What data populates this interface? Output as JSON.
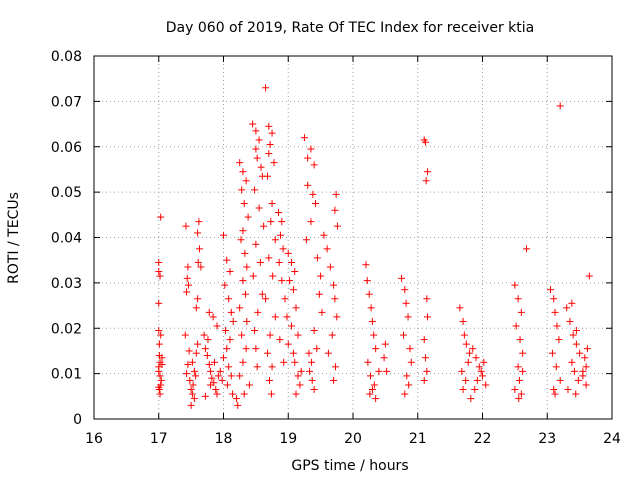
{
  "chart_data": {
    "type": "scatter",
    "title": "Day 060 of 2019, Rate Of TEC Index for receiver ktia",
    "xlabel": "GPS time / hours",
    "ylabel": "ROTI / TECUs",
    "xlim": [
      16,
      24
    ],
    "ylim": [
      0,
      0.08
    ],
    "grid": true,
    "marker": "+",
    "color": "#ff0000",
    "x_ticks": [
      "16",
      "17",
      "18",
      "19",
      "20",
      "21",
      "22",
      "23",
      "24"
    ],
    "y_ticks": [
      "0",
      "0.01",
      "0.02",
      "0.03",
      "0.04",
      "0.05",
      "0.06",
      "0.07",
      "0.08"
    ],
    "series": [
      {
        "name": "ROTI",
        "x": [
          17.0,
          17.0,
          17.02,
          17.0,
          17.03,
          17.01,
          17.05,
          17.0,
          17.02,
          17.04,
          17.0,
          17.01,
          17.02,
          17.03,
          17.0,
          17.02,
          17.05,
          17.01,
          17.03,
          17.0,
          17.42,
          17.45,
          17.44,
          17.46,
          17.43,
          17.41,
          17.47,
          17.45,
          17.43,
          17.48,
          17.5,
          17.52,
          17.55,
          17.5,
          17.53,
          17.57,
          17.55,
          17.52,
          17.58,
          17.6,
          17.62,
          17.6,
          17.63,
          17.61,
          17.65,
          17.6,
          17.58,
          17.7,
          17.72,
          17.75,
          17.78,
          17.8,
          17.82,
          17.85,
          17.88,
          17.9,
          17.72,
          17.78,
          17.84,
          17.9,
          17.76,
          17.86,
          17.95,
          17.92,
          17.98,
          17.8,
          18.0,
          18.05,
          18.1,
          18.02,
          18.08,
          18.12,
          18.15,
          18.03,
          18.1,
          18.05,
          18.0,
          18.08,
          18.12,
          18.06,
          18.14,
          18.2,
          18.22,
          18.25,
          18.3,
          18.35,
          18.28,
          18.32,
          18.38,
          18.3,
          18.27,
          18.33,
          18.36,
          18.3,
          18.34,
          18.25,
          18.36,
          18.28,
          18.35,
          18.3,
          18.25,
          18.4,
          18.32,
          18.45,
          18.5,
          18.55,
          18.5,
          18.52,
          18.58,
          18.6,
          18.48,
          18.55,
          18.62,
          18.5,
          18.57,
          18.46,
          18.6,
          18.53,
          18.48,
          18.5,
          18.52,
          18.65,
          18.7,
          18.75,
          18.72,
          18.7,
          18.78,
          18.68,
          18.75,
          18.73,
          18.8,
          18.7,
          18.76,
          18.65,
          18.8,
          18.72,
          18.68,
          18.75,
          18.71,
          18.74,
          18.85,
          18.9,
          18.88,
          18.92,
          18.86,
          18.9,
          18.95,
          18.98,
          18.87,
          18.93,
          19.0,
          19.05,
          19.1,
          19.02,
          19.08,
          19.12,
          19.05,
          19.0,
          19.1,
          19.15,
          19.18,
          19.12,
          19.2,
          19.08,
          19.15,
          19.25,
          19.3,
          19.35,
          19.4,
          19.3,
          19.38,
          19.42,
          19.35,
          19.28,
          19.45,
          19.5,
          19.48,
          19.52,
          19.4,
          19.44,
          19.36,
          19.33,
          19.37,
          19.4,
          19.32,
          19.55,
          19.6,
          19.65,
          19.7,
          19.72,
          19.75,
          19.68,
          19.62,
          19.73,
          19.7,
          19.74,
          19.72,
          19.76,
          20.2,
          20.22,
          20.25,
          20.28,
          20.3,
          20.32,
          20.35,
          20.23,
          20.27,
          20.33,
          20.3,
          20.26,
          20.35,
          20.4,
          20.5,
          20.48,
          20.52,
          20.75,
          20.8,
          20.82,
          20.85,
          20.78,
          20.88,
          20.9,
          20.83,
          20.86,
          20.8,
          21.1,
          21.12,
          21.15,
          21.13,
          21.14,
          21.15,
          21.1,
          21.12,
          21.14,
          21.1,
          21.65,
          21.7,
          21.72,
          21.75,
          21.8,
          21.78,
          21.68,
          21.74,
          21.7,
          21.82,
          21.85,
          21.9,
          21.95,
          22.0,
          22.05,
          21.92,
          21.98,
          22.02,
          21.88,
          22.5,
          22.55,
          22.6,
          22.52,
          22.58,
          22.62,
          22.55,
          22.57,
          22.5,
          22.6,
          22.56,
          22.62,
          22.68,
          23.05,
          23.1,
          23.12,
          23.15,
          23.18,
          23.08,
          23.14,
          23.2,
          23.1,
          23.12,
          23.3,
          23.35,
          23.4,
          23.45,
          23.5,
          23.38,
          23.42,
          23.48,
          23.32,
          23.44,
          23.55,
          23.6,
          23.58,
          23.62,
          23.65,
          23.6,
          23.45,
          23.2,
          23.38,
          23.55
        ],
        "y": [
          0.0345,
          0.0325,
          0.0315,
          0.0195,
          0.0185,
          0.014,
          0.012,
          0.0105,
          0.0095,
          0.0085,
          0.007,
          0.0065,
          0.0055,
          0.0075,
          0.0115,
          0.0125,
          0.0135,
          0.0165,
          0.0445,
          0.0255,
          0.0425,
          0.0335,
          0.031,
          0.0295,
          0.028,
          0.0185,
          0.015,
          0.012,
          0.01,
          0.0085,
          0.0065,
          0.0055,
          0.0045,
          0.003,
          0.0075,
          0.0095,
          0.0105,
          0.0125,
          0.0145,
          0.0165,
          0.0435,
          0.041,
          0.0375,
          0.0345,
          0.0335,
          0.0265,
          0.0245,
          0.0185,
          0.0155,
          0.014,
          0.012,
          0.0105,
          0.009,
          0.008,
          0.0065,
          0.0055,
          0.005,
          0.0235,
          0.0225,
          0.0205,
          0.0175,
          0.0125,
          0.0105,
          0.0095,
          0.0085,
          0.0075,
          0.0405,
          0.035,
          0.0325,
          0.0295,
          0.0265,
          0.0235,
          0.0215,
          0.0195,
          0.0175,
          0.0155,
          0.0135,
          0.0115,
          0.0095,
          0.0075,
          0.0055,
          0.0045,
          0.003,
          0.0565,
          0.0545,
          0.0525,
          0.0505,
          0.0475,
          0.0445,
          0.0415,
          0.0395,
          0.0365,
          0.0335,
          0.0305,
          0.0275,
          0.0245,
          0.0215,
          0.0185,
          0.0155,
          0.0125,
          0.0095,
          0.0075,
          0.0055,
          0.065,
          0.0635,
          0.0615,
          0.0595,
          0.0575,
          0.0555,
          0.0535,
          0.0505,
          0.0465,
          0.0425,
          0.0385,
          0.0345,
          0.0315,
          0.0275,
          0.0235,
          0.0195,
          0.0155,
          0.0115,
          0.073,
          0.0645,
          0.063,
          0.0605,
          0.0585,
          0.0565,
          0.0535,
          0.0475,
          0.0435,
          0.0395,
          0.0355,
          0.0315,
          0.0265,
          0.0225,
          0.0185,
          0.0145,
          0.0115,
          0.0085,
          0.0055,
          0.0455,
          0.0435,
          0.0405,
          0.0375,
          0.0345,
          0.0305,
          0.0265,
          0.0225,
          0.0175,
          0.0125,
          0.0365,
          0.0345,
          0.0325,
          0.0305,
          0.0285,
          0.0245,
          0.0205,
          0.0165,
          0.0125,
          0.0095,
          0.0075,
          0.0055,
          0.0105,
          0.0145,
          0.0185,
          0.062,
          0.0575,
          0.0595,
          0.056,
          0.0515,
          0.0495,
          0.0475,
          0.0435,
          0.0395,
          0.0355,
          0.0315,
          0.0275,
          0.0235,
          0.0195,
          0.0155,
          0.0125,
          0.0105,
          0.0085,
          0.0065,
          0.0145,
          0.0405,
          0.0375,
          0.0335,
          0.0295,
          0.0265,
          0.0225,
          0.0185,
          0.0145,
          0.0115,
          0.0085,
          0.0495,
          0.046,
          0.0425,
          0.034,
          0.0305,
          0.0275,
          0.0245,
          0.0215,
          0.0185,
          0.0155,
          0.0125,
          0.0095,
          0.0075,
          0.0065,
          0.0055,
          0.0045,
          0.0105,
          0.0165,
          0.0135,
          0.0105,
          0.031,
          0.0285,
          0.0255,
          0.0225,
          0.0185,
          0.0155,
          0.0125,
          0.0095,
          0.0075,
          0.0055,
          0.0615,
          0.061,
          0.0545,
          0.0525,
          0.0265,
          0.0225,
          0.0175,
          0.0135,
          0.0105,
          0.0085,
          0.0245,
          0.0215,
          0.0185,
          0.0165,
          0.0145,
          0.0125,
          0.0105,
          0.0085,
          0.0065,
          0.0045,
          0.0155,
          0.0135,
          0.0115,
          0.0095,
          0.0075,
          0.0085,
          0.0105,
          0.0125,
          0.0065,
          0.0295,
          0.0265,
          0.0235,
          0.0205,
          0.0175,
          0.0145,
          0.0115,
          0.0085,
          0.0065,
          0.0055,
          0.0045,
          0.0105,
          0.0375,
          0.0285,
          0.0265,
          0.0235,
          0.0205,
          0.0175,
          0.0145,
          0.0115,
          0.0085,
          0.0065,
          0.0055,
          0.0245,
          0.0215,
          0.0185,
          0.0165,
          0.0145,
          0.0125,
          0.0105,
          0.0085,
          0.0065,
          0.0055,
          0.0095,
          0.0075,
          0.0135,
          0.0155,
          0.0315,
          0.0115,
          0.0195,
          0.069,
          0.0255,
          0.0105
        ]
      }
    ]
  }
}
